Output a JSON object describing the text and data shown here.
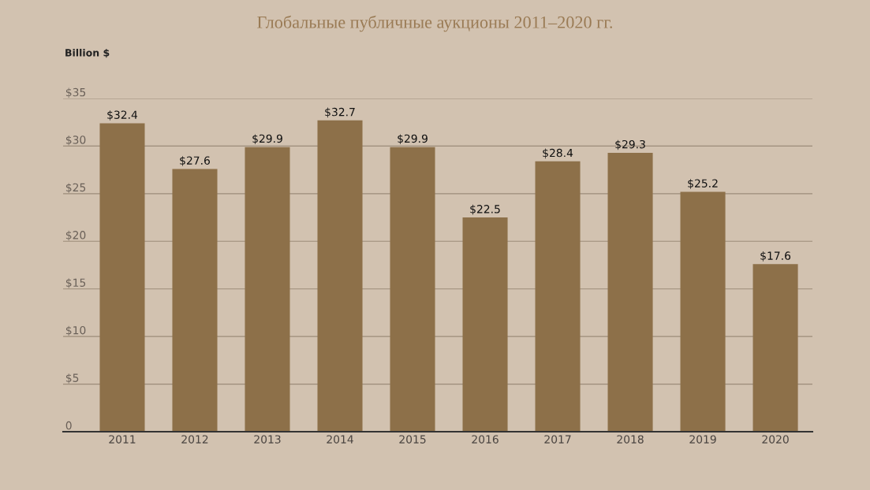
{
  "chart_data": {
    "type": "bar",
    "title": "Глобальные публичные аукционы 2011–2020 гг.",
    "ylabel": "Billion $",
    "categories": [
      "2011",
      "2012",
      "2013",
      "2014",
      "2015",
      "2016",
      "2017",
      "2018",
      "2019",
      "2020"
    ],
    "values": [
      32.4,
      27.6,
      29.9,
      32.7,
      29.9,
      22.5,
      28.4,
      29.3,
      25.2,
      17.6
    ],
    "value_labels": [
      "$32.4",
      "$27.6",
      "$29.9",
      "$32.7",
      "$29.9",
      "$22.5",
      "$28.4",
      "$29.3",
      "$25.2",
      "$17.6"
    ],
    "color": "#8d7049",
    "ylim": [
      0,
      35
    ],
    "yticks": [
      {
        "value": 0,
        "label": "0"
      },
      {
        "value": 5,
        "label": "$5"
      },
      {
        "value": 10,
        "label": "$10"
      },
      {
        "value": 15,
        "label": "$15"
      },
      {
        "value": 20,
        "label": "$20"
      },
      {
        "value": 25,
        "label": "$25"
      },
      {
        "value": 30,
        "label": "$30"
      },
      {
        "value": 35,
        "label": "$35"
      }
    ],
    "grid": "y",
    "legend": false
  }
}
